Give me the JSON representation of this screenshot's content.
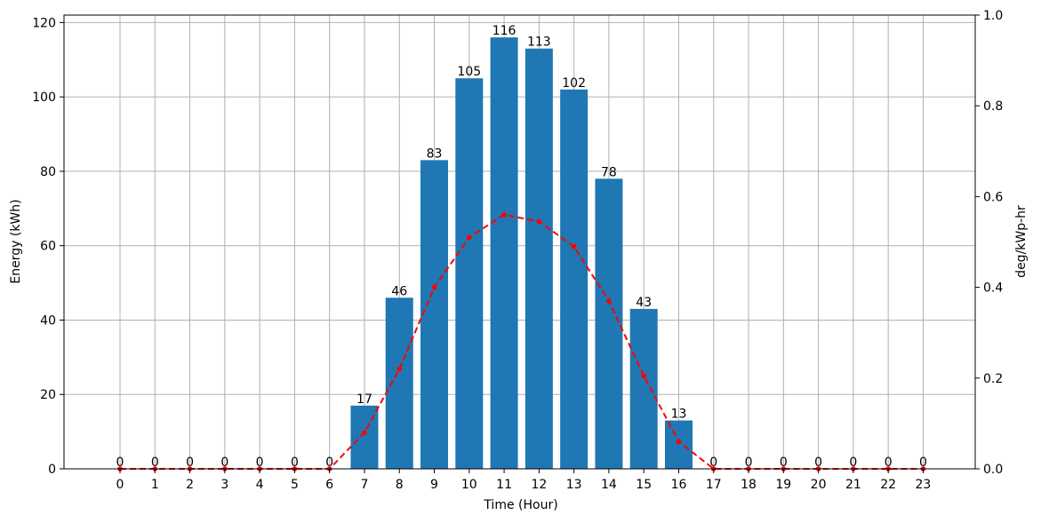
{
  "chart_data": {
    "type": "bar",
    "xlabel": "Time (Hour)",
    "ylabel": "Energy (kWh)",
    "y2label": "deg/kWp-hr",
    "categories": [
      "0",
      "1",
      "2",
      "3",
      "4",
      "5",
      "6",
      "7",
      "8",
      "9",
      "10",
      "11",
      "12",
      "13",
      "14",
      "15",
      "16",
      "17",
      "18",
      "19",
      "20",
      "21",
      "22",
      "23"
    ],
    "ylim": [
      0,
      122
    ],
    "yticks": [
      0,
      20,
      40,
      60,
      80,
      100,
      120
    ],
    "y2lim": [
      0,
      1.0
    ],
    "y2ticks": [
      "0.0",
      "0.2",
      "0.4",
      "0.6",
      "0.8",
      "1.0"
    ],
    "grid": true,
    "series": [
      {
        "type": "bar",
        "axis": "left",
        "color": "#1f77b4",
        "values": [
          0,
          0,
          0,
          0,
          0,
          0,
          0,
          17,
          46,
          83,
          105,
          116,
          113,
          102,
          78,
          43,
          13,
          0,
          0,
          0,
          0,
          0,
          0,
          0
        ],
        "labels": [
          "0",
          "0",
          "0",
          "0",
          "0",
          "0",
          "0",
          "17",
          "46",
          "83",
          "105",
          "116",
          "113",
          "102",
          "78",
          "43",
          "13",
          "0",
          "0",
          "0",
          "0",
          "0",
          "0",
          "0"
        ]
      },
      {
        "type": "line",
        "axis": "right",
        "color": "#ff0000",
        "linestyle": "dashed",
        "marker": "dot",
        "values": [
          0,
          0,
          0,
          0,
          0,
          0,
          0,
          0.08,
          0.22,
          0.4,
          0.51,
          0.56,
          0.545,
          0.49,
          0.37,
          0.205,
          0.06,
          0,
          0,
          0,
          0,
          0,
          0,
          0
        ]
      }
    ]
  }
}
